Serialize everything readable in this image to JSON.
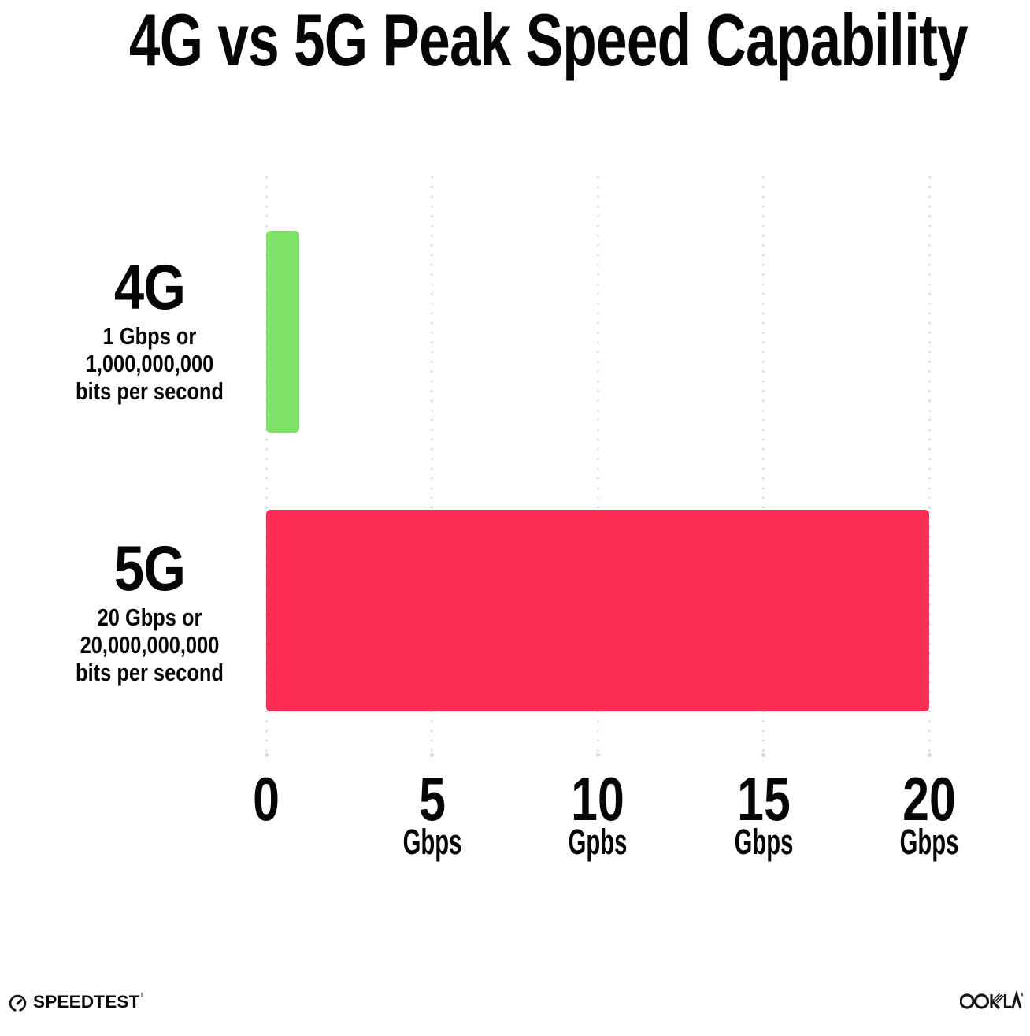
{
  "title": "4G vs 5G Peak Speed Capability",
  "chart_data": {
    "type": "bar",
    "orientation": "horizontal",
    "title": "4G vs 5G Peak Speed Capability",
    "categories": [
      "4G",
      "5G"
    ],
    "values": [
      1,
      20
    ],
    "xlim": [
      0,
      20
    ],
    "grid": "dotted-vertical-gridlines",
    "rows": [
      {
        "label": "4G",
        "value": 1,
        "color": "#7EE266",
        "sublabel_lines": [
          "1 Gbps or",
          "1,000,000,000",
          "bits per second"
        ]
      },
      {
        "label": "5G",
        "value": 20,
        "color": "#FE2D55",
        "sublabel_lines": [
          "20 Gbps or",
          "20,000,000,000",
          "bits per second"
        ]
      }
    ],
    "x_ticks": [
      {
        "value": 0,
        "label": "0",
        "unit": ""
      },
      {
        "value": 5,
        "label": "5",
        "unit": "Gbps"
      },
      {
        "value": 10,
        "label": "10",
        "unit": "Gpbs"
      },
      {
        "value": 15,
        "label": "15",
        "unit": "Gbps"
      },
      {
        "value": 20,
        "label": "20",
        "unit": "Gbps"
      }
    ]
  },
  "footer": {
    "speedtest_label": "SPEEDTEST",
    "ookla_label": "OOKLA"
  }
}
